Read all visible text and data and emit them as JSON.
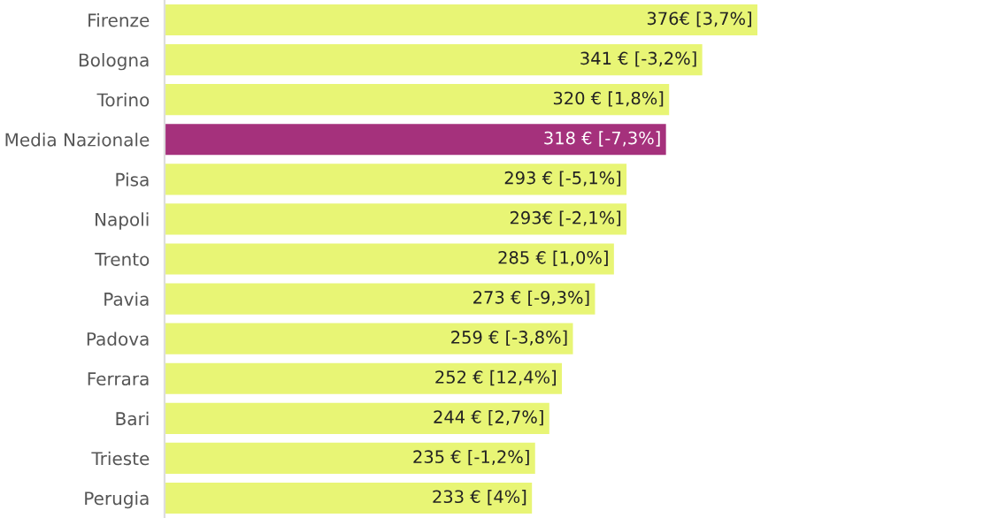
{
  "chart_data": {
    "type": "bar",
    "orientation": "horizontal",
    "categories": [
      "Firenze",
      "Bologna",
      "Torino",
      "Media Nazionale",
      "Pisa",
      "Napoli",
      "Trento",
      "Pavia",
      "Padova",
      "Ferrara",
      "Bari",
      "Trieste",
      "Perugia"
    ],
    "values": [
      376,
      341,
      320,
      318,
      293,
      293,
      285,
      273,
      259,
      252,
      244,
      235,
      233
    ],
    "value_labels": [
      "376€ [3,7%]",
      "341 € [-3,2%]",
      "320 € [1,8%]",
      "318 € [-7,3%]",
      "293 € [-5,1%]",
      "293€ [-2,1%]",
      "285 € [1,0%]",
      "273 € [-9,3%]",
      "259 € [-3,8%]",
      "252 € [12,4%]",
      "244 € [2,7%]",
      "235 € [-1,2%]",
      "233 € [4%]"
    ],
    "colors": [
      "#e8f575",
      "#e8f575",
      "#e8f575",
      "#a5317c",
      "#e8f575",
      "#e8f575",
      "#e8f575",
      "#e8f575",
      "#e8f575",
      "#e8f575",
      "#e8f575",
      "#e8f575",
      "#e8f575"
    ],
    "grid": false,
    "legend": false
  }
}
